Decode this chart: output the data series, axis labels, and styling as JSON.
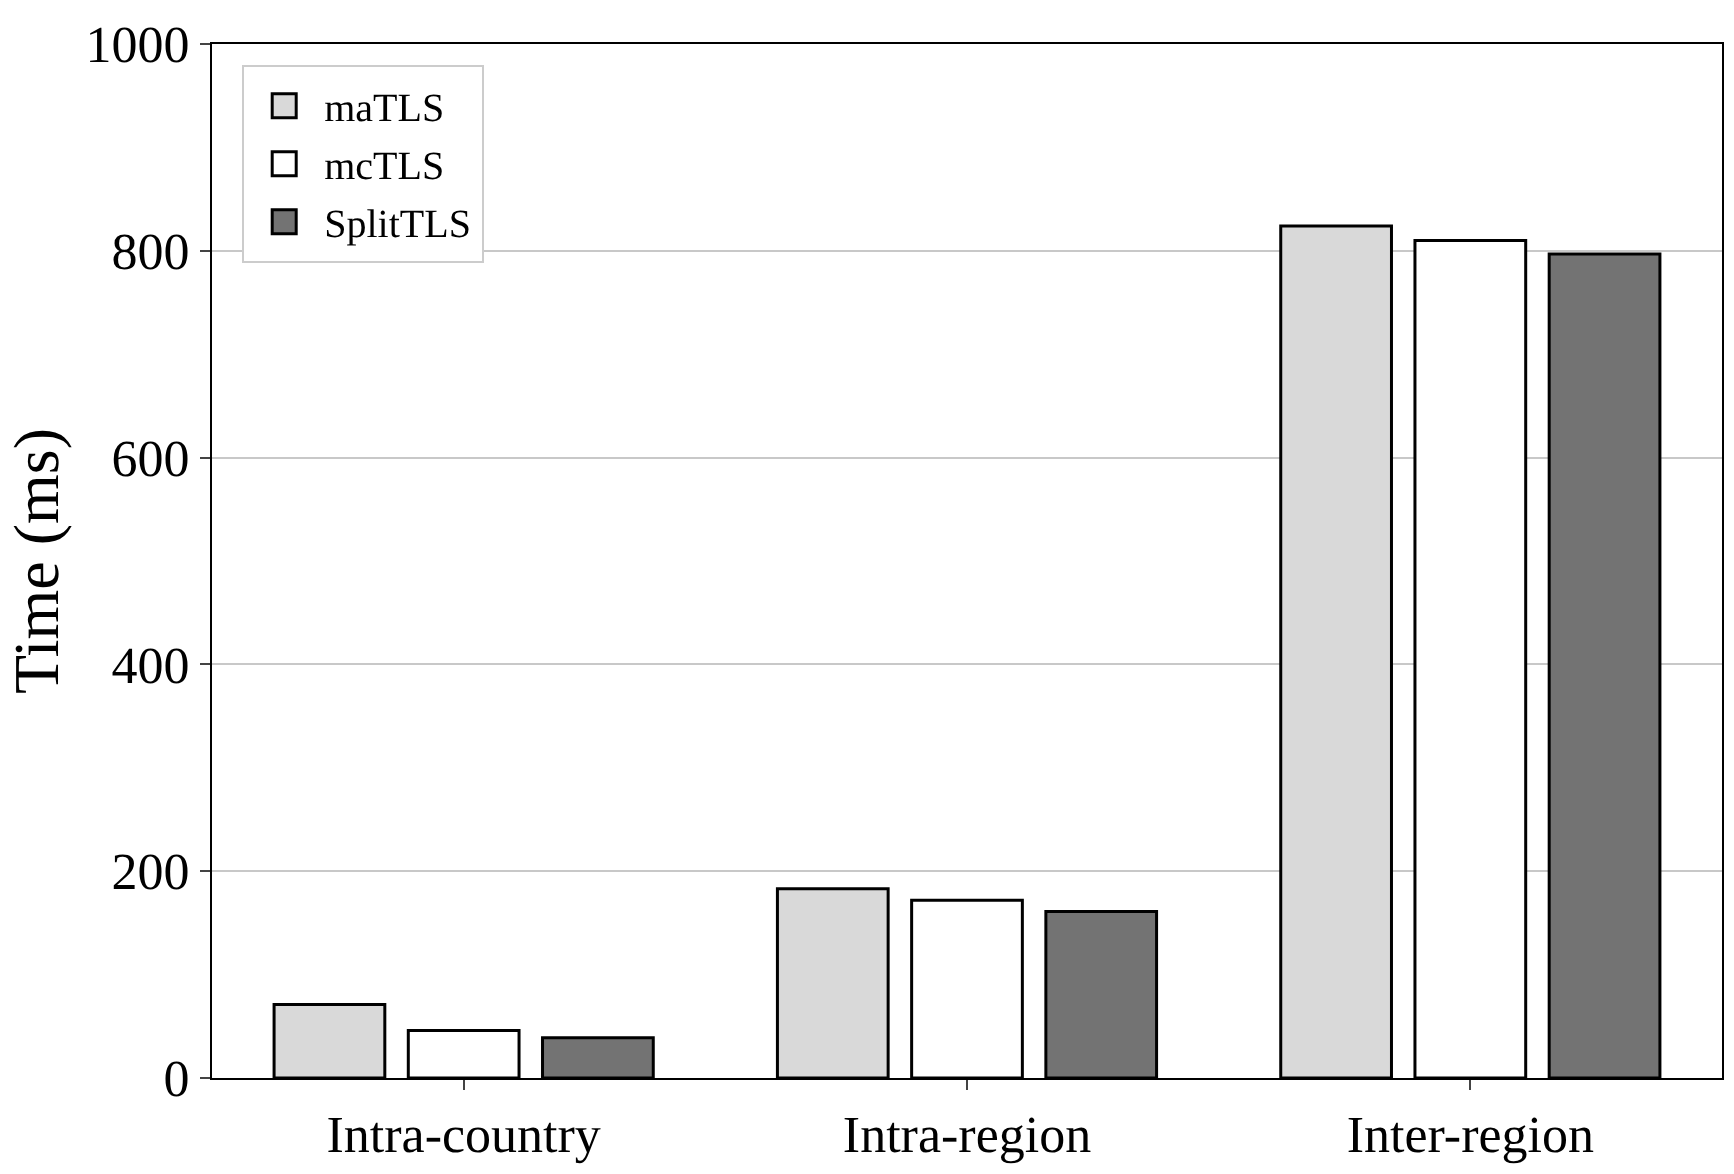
{
  "chart_data": {
    "type": "bar",
    "ylabel": "Time (ms)",
    "categories": [
      "Intra-country",
      "Intra-region",
      "Inter-region"
    ],
    "series": [
      {
        "name": "maTLS",
        "color": "#d9d9d9",
        "values": [
          71,
          183,
          824
        ]
      },
      {
        "name": "mcTLS",
        "color": "#ffffff",
        "values": [
          46,
          172,
          810
        ]
      },
      {
        "name": "SplitTLS",
        "color": "#737373",
        "values": [
          39,
          161,
          797
        ]
      }
    ],
    "ylim": [
      0,
      1000
    ],
    "yticks": [
      0,
      200,
      400,
      600,
      800,
      1000
    ],
    "grid": "y",
    "legend": "top left"
  }
}
